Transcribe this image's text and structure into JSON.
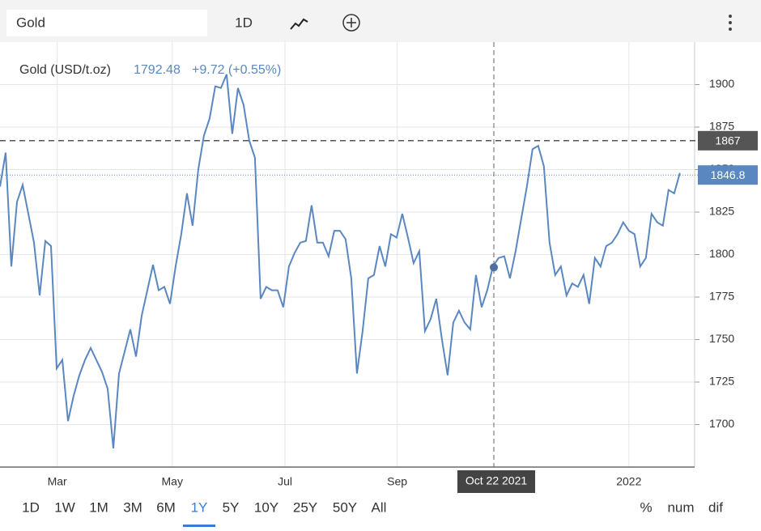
{
  "toolbar": {
    "symbol": "Gold",
    "interval": "1D"
  },
  "chart_data": {
    "type": "line",
    "series_label": "Gold (USD/t.oz)",
    "hover": {
      "label": "Oct 22 2021",
      "price": 1792.48,
      "change": "+9.72 (+0.55%)"
    },
    "series": [
      {
        "name": "Gold",
        "color": "#5a87c0",
        "values": [
          1840,
          1860,
          1793,
          1831,
          1841,
          1824,
          1807,
          1776,
          1808,
          1805,
          1733,
          1738,
          1702,
          1717,
          1729,
          1738,
          1745,
          1738,
          1731,
          1721,
          1686,
          1730,
          1743,
          1756,
          1740,
          1764,
          1779,
          1794,
          1779,
          1781,
          1771,
          1793,
          1812,
          1836,
          1817,
          1850,
          1870,
          1880,
          1899,
          1898,
          1906,
          1871,
          1898,
          1888,
          1867,
          1857,
          1774,
          1781,
          1779,
          1779,
          1769,
          1793,
          1801,
          1807,
          1808,
          1829,
          1807,
          1807,
          1799,
          1814,
          1814,
          1809,
          1786,
          1730,
          1755,
          1786,
          1788,
          1805,
          1793,
          1812,
          1810,
          1824,
          1810,
          1795,
          1802,
          1755,
          1762,
          1774,
          1750,
          1729,
          1760,
          1767,
          1760,
          1756,
          1788,
          1769,
          1779,
          1793,
          1798,
          1799,
          1786,
          1802,
          1821,
          1840,
          1862,
          1864,
          1852,
          1807,
          1788,
          1793,
          1776,
          1783,
          1781,
          1788,
          1771,
          1798,
          1793,
          1805,
          1807,
          1812,
          1819,
          1814,
          1812,
          1793,
          1798,
          1824,
          1819,
          1817,
          1838,
          1836,
          1848
        ]
      }
    ],
    "ylim": [
      1675,
      1925
    ],
    "yticks": [
      1700,
      1725,
      1750,
      1775,
      1800,
      1825,
      1850,
      1875,
      1900
    ],
    "xlim": [
      0,
      122.6
    ],
    "xticks": [
      {
        "value": 10.1,
        "label": "Mar"
      },
      {
        "value": 30.4,
        "label": "May"
      },
      {
        "value": 50.3,
        "label": "Jul"
      },
      {
        "value": 70.1,
        "label": "Sep"
      },
      {
        "value": 111,
        "label": "2022"
      }
    ],
    "grid": true,
    "ref_lines": [
      {
        "value": 1867,
        "color": "#555555",
        "style": "dashed"
      },
      {
        "value": 1846.8,
        "color": "#5a87c0",
        "style": "dotted"
      }
    ]
  },
  "ranges": [
    "1D",
    "1W",
    "1M",
    "3M",
    "6M",
    "1Y",
    "5Y",
    "10Y",
    "25Y",
    "50Y",
    "All"
  ],
  "active_range": "1Y",
  "modes": [
    "%",
    "num",
    "dif"
  ]
}
